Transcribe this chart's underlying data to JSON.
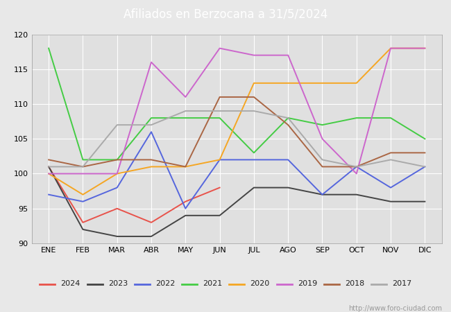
{
  "title": "Afiliados en Berzocana a 31/5/2024",
  "title_color": "#ffffff",
  "title_bg_color": "#5599dd",
  "ylim": [
    90,
    120
  ],
  "yticks": [
    90,
    95,
    100,
    105,
    110,
    115,
    120
  ],
  "months": [
    "ENE",
    "FEB",
    "MAR",
    "ABR",
    "MAY",
    "JUN",
    "JUL",
    "AGO",
    "SEP",
    "OCT",
    "NOV",
    "DIC"
  ],
  "series": {
    "2024": {
      "color": "#e8524a",
      "data": [
        101,
        93,
        95,
        93,
        96,
        98,
        null,
        null,
        null,
        null,
        null,
        null
      ]
    },
    "2023": {
      "color": "#444444",
      "data": [
        101,
        92,
        91,
        91,
        94,
        94,
        98,
        98,
        97,
        97,
        96,
        96
      ]
    },
    "2022": {
      "color": "#5566dd",
      "data": [
        97,
        96,
        98,
        106,
        95,
        102,
        102,
        102,
        97,
        101,
        98,
        101
      ]
    },
    "2021": {
      "color": "#44cc44",
      "data": [
        118,
        102,
        102,
        108,
        108,
        108,
        103,
        108,
        107,
        108,
        108,
        105
      ]
    },
    "2020": {
      "color": "#f5a623",
      "data": [
        100,
        97,
        100,
        101,
        101,
        102,
        113,
        113,
        113,
        113,
        118,
        118
      ]
    },
    "2019": {
      "color": "#cc66cc",
      "data": [
        100,
        100,
        100,
        116,
        111,
        118,
        117,
        117,
        105,
        100,
        118,
        118
      ]
    },
    "2018": {
      "color": "#aa6644",
      "data": [
        102,
        101,
        102,
        102,
        101,
        111,
        111,
        107,
        101,
        101,
        103,
        103
      ]
    },
    "2017": {
      "color": "#aaaaaa",
      "data": [
        101,
        101,
        107,
        107,
        109,
        109,
        109,
        108,
        102,
        101,
        102,
        101
      ]
    }
  },
  "legend_order": [
    "2024",
    "2023",
    "2022",
    "2021",
    "2020",
    "2019",
    "2018",
    "2017"
  ],
  "bg_color": "#e8e8e8",
  "plot_bg_color": "#e0e0e0",
  "grid_color": "#ffffff",
  "watermark": "http://www.foro-ciudad.com"
}
